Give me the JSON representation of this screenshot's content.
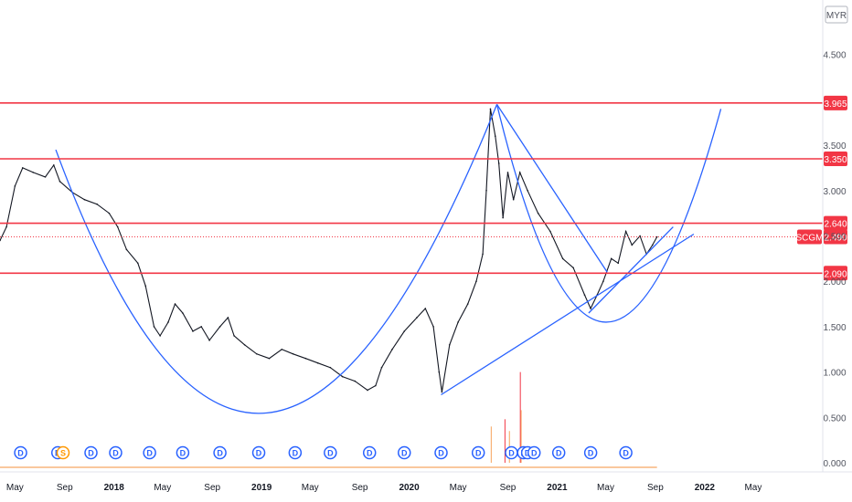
{
  "chart_data": {
    "type": "line",
    "currency": "MYR",
    "symbol": "SCGM",
    "last_price": 2.49,
    "y_axis": {
      "ylim": [
        -0.1,
        5.1
      ],
      "ticks": [
        "4.500",
        "3.500",
        "3.000",
        "2.500",
        "2.000",
        "1.500",
        "1.000",
        "0.500",
        "0.000"
      ]
    },
    "x_axis": {
      "xlim": [
        "2017-03-25",
        "2022-10-20"
      ],
      "ticks": [
        {
          "label": "May",
          "date": "2017-05-01"
        },
        {
          "label": "Sep",
          "date": "2017-09-01"
        },
        {
          "label": "2018",
          "date": "2018-01-01"
        },
        {
          "label": "May",
          "date": "2018-05-01"
        },
        {
          "label": "Sep",
          "date": "2018-09-01"
        },
        {
          "label": "2019",
          "date": "2019-01-01"
        },
        {
          "label": "May",
          "date": "2019-05-01"
        },
        {
          "label": "Sep",
          "date": "2019-09-01"
        },
        {
          "label": "2020",
          "date": "2020-01-01"
        },
        {
          "label": "May",
          "date": "2020-05-01"
        },
        {
          "label": "Sep",
          "date": "2020-09-01"
        },
        {
          "label": "2021",
          "date": "2021-01-01"
        },
        {
          "label": "May",
          "date": "2021-05-01"
        },
        {
          "label": "Sep",
          "date": "2021-09-01"
        },
        {
          "label": "2022",
          "date": "2022-01-01"
        },
        {
          "label": "May",
          "date": "2022-05-01"
        }
      ]
    },
    "price_series": {
      "name": "SCGM",
      "points": [
        [
          "2017-03-25",
          2.45
        ],
        [
          "2017-04-10",
          2.6
        ],
        [
          "2017-05-01",
          3.05
        ],
        [
          "2017-05-20",
          3.25
        ],
        [
          "2017-06-15",
          3.2
        ],
        [
          "2017-07-15",
          3.15
        ],
        [
          "2017-08-05",
          3.28
        ],
        [
          "2017-08-20",
          3.1
        ],
        [
          "2017-09-20",
          2.98
        ],
        [
          "2017-10-20",
          2.9
        ],
        [
          "2017-11-20",
          2.85
        ],
        [
          "2017-12-20",
          2.75
        ],
        [
          "2018-01-10",
          2.6
        ],
        [
          "2018-02-01",
          2.35
        ],
        [
          "2018-03-01",
          2.2
        ],
        [
          "2018-03-20",
          1.95
        ],
        [
          "2018-04-10",
          1.5
        ],
        [
          "2018-04-25",
          1.4
        ],
        [
          "2018-05-15",
          1.55
        ],
        [
          "2018-06-01",
          1.75
        ],
        [
          "2018-06-20",
          1.65
        ],
        [
          "2018-07-15",
          1.45
        ],
        [
          "2018-08-05",
          1.5
        ],
        [
          "2018-08-25",
          1.35
        ],
        [
          "2018-09-20",
          1.5
        ],
        [
          "2018-10-10",
          1.6
        ],
        [
          "2018-10-25",
          1.4
        ],
        [
          "2018-11-20",
          1.3
        ],
        [
          "2018-12-20",
          1.2
        ],
        [
          "2019-01-20",
          1.15
        ],
        [
          "2019-02-20",
          1.25
        ],
        [
          "2019-03-20",
          1.2
        ],
        [
          "2019-04-20",
          1.15
        ],
        [
          "2019-05-20",
          1.1
        ],
        [
          "2019-06-20",
          1.05
        ],
        [
          "2019-07-20",
          0.95
        ],
        [
          "2019-08-20",
          0.9
        ],
        [
          "2019-09-20",
          0.8
        ],
        [
          "2019-10-10",
          0.85
        ],
        [
          "2019-10-25",
          1.05
        ],
        [
          "2019-11-20",
          1.25
        ],
        [
          "2019-12-20",
          1.45
        ],
        [
          "2020-01-20",
          1.6
        ],
        [
          "2020-02-10",
          1.7
        ],
        [
          "2020-03-01",
          1.5
        ],
        [
          "2020-03-15",
          1.0
        ],
        [
          "2020-03-22",
          0.78
        ],
        [
          "2020-04-10",
          1.3
        ],
        [
          "2020-05-01",
          1.55
        ],
        [
          "2020-05-25",
          1.75
        ],
        [
          "2020-06-15",
          2.0
        ],
        [
          "2020-07-01",
          2.3
        ],
        [
          "2020-07-10",
          3.0
        ],
        [
          "2020-07-20",
          3.9
        ],
        [
          "2020-08-01",
          3.6
        ],
        [
          "2020-08-10",
          3.3
        ],
        [
          "2020-08-20",
          2.7
        ],
        [
          "2020-09-01",
          3.2
        ],
        [
          "2020-09-15",
          2.9
        ],
        [
          "2020-10-01",
          3.2
        ],
        [
          "2020-10-20",
          3.0
        ],
        [
          "2020-11-15",
          2.75
        ],
        [
          "2020-12-15",
          2.55
        ],
        [
          "2021-01-15",
          2.25
        ],
        [
          "2021-02-10",
          2.15
        ],
        [
          "2021-03-10",
          1.85
        ],
        [
          "2021-03-25",
          1.7
        ],
        [
          "2021-04-10",
          1.85
        ],
        [
          "2021-04-25",
          2.0
        ],
        [
          "2021-05-15",
          2.25
        ],
        [
          "2021-06-01",
          2.2
        ],
        [
          "2021-06-20",
          2.55
        ],
        [
          "2021-07-05",
          2.4
        ],
        [
          "2021-07-25",
          2.5
        ],
        [
          "2021-08-10",
          2.3
        ],
        [
          "2021-08-25",
          2.4
        ],
        [
          "2021-09-05",
          2.49
        ]
      ]
    },
    "volume_series": {
      "name": "Volume",
      "baseline": 0.0,
      "spikes": [
        {
          "date": "2020-07-22",
          "value": 0.4
        },
        {
          "date": "2020-08-25",
          "value": 0.48
        },
        {
          "date": "2020-09-05",
          "value": 0.35
        },
        {
          "date": "2020-10-02",
          "value": 1.0
        },
        {
          "date": "2020-10-04",
          "value": 0.58
        }
      ]
    },
    "horizontal_levels": [
      {
        "price": 3.965,
        "label": "3.965"
      },
      {
        "price": 3.35,
        "label": "3.350"
      },
      {
        "price": 2.64,
        "label": "2.640"
      },
      {
        "price": 2.09,
        "label": "2.090"
      }
    ],
    "event_markers": [
      {
        "date": "2017-05-15",
        "type": "D"
      },
      {
        "date": "2017-08-15",
        "type": "D"
      },
      {
        "date": "2017-08-28",
        "type": "S"
      },
      {
        "date": "2017-11-05",
        "type": "D"
      },
      {
        "date": "2018-01-05",
        "type": "D"
      },
      {
        "date": "2018-03-30",
        "type": "D"
      },
      {
        "date": "2018-06-20",
        "type": "D"
      },
      {
        "date": "2018-09-20",
        "type": "D"
      },
      {
        "date": "2018-12-25",
        "type": "D"
      },
      {
        "date": "2019-03-25",
        "type": "D"
      },
      {
        "date": "2019-06-20",
        "type": "D"
      },
      {
        "date": "2019-09-25",
        "type": "D"
      },
      {
        "date": "2019-12-20",
        "type": "D"
      },
      {
        "date": "2020-03-20",
        "type": "D"
      },
      {
        "date": "2020-06-20",
        "type": "D"
      },
      {
        "date": "2020-09-10",
        "type": "D"
      },
      {
        "date": "2020-10-10",
        "type": "D"
      },
      {
        "date": "2020-10-20",
        "type": "D"
      },
      {
        "date": "2020-11-05",
        "type": "D"
      },
      {
        "date": "2021-01-05",
        "type": "D"
      },
      {
        "date": "2021-03-25",
        "type": "D"
      },
      {
        "date": "2021-06-20",
        "type": "D"
      }
    ],
    "trendlines": [
      {
        "name": "cup",
        "points": [
          [
            "2017-08-10",
            3.45
          ],
          [
            "2019-01-15",
            0.55
          ],
          [
            "2020-08-05",
            3.95
          ]
        ]
      },
      {
        "name": "falling",
        "points": [
          [
            "2020-08-05",
            3.95
          ],
          [
            "2021-05-05",
            2.1
          ]
        ]
      },
      {
        "name": "support-1",
        "points": [
          [
            "2020-03-20",
            0.75
          ],
          [
            "2021-12-05",
            2.52
          ]
        ]
      },
      {
        "name": "support-2",
        "points": [
          [
            "2021-03-20",
            1.65
          ],
          [
            "2021-10-15",
            2.6
          ]
        ]
      },
      {
        "name": "right-cup",
        "points": [
          [
            "2020-08-05",
            3.95
          ],
          [
            "2021-05-01",
            1.55
          ],
          [
            "2022-02-10",
            3.9
          ]
        ]
      }
    ],
    "colors": {
      "level_line": "#f23645",
      "trendline": "#2962ff",
      "price_line": "#131722",
      "volume_orange": "#f7a35c",
      "volume_blue": "#2962ff",
      "grid": "#e0e3eb",
      "axis_text": "#50535e"
    },
    "grid": false
  }
}
